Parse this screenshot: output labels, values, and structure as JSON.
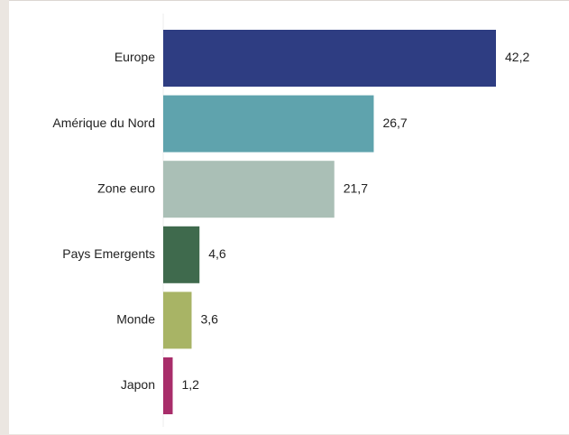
{
  "chart_data": {
    "type": "bar",
    "orientation": "horizontal",
    "title": "",
    "xlabel": "",
    "ylabel": "",
    "categories": [
      "Europe",
      "Amérique du Nord",
      "Zone euro",
      "Pays Emergents",
      "Monde",
      "Japon"
    ],
    "values": [
      42.2,
      26.7,
      21.7,
      4.6,
      3.6,
      1.2
    ],
    "value_labels": [
      "42,2",
      "26,7",
      "21,7",
      "4,6",
      "3,6",
      "1,2"
    ],
    "colors": [
      "#2e3d82",
      "#5fa3ad",
      "#aabfb6",
      "#3f6a4d",
      "#a8b465",
      "#a82d6a"
    ],
    "xlim": [
      0,
      42.2
    ],
    "grid": false,
    "legend": "none"
  }
}
